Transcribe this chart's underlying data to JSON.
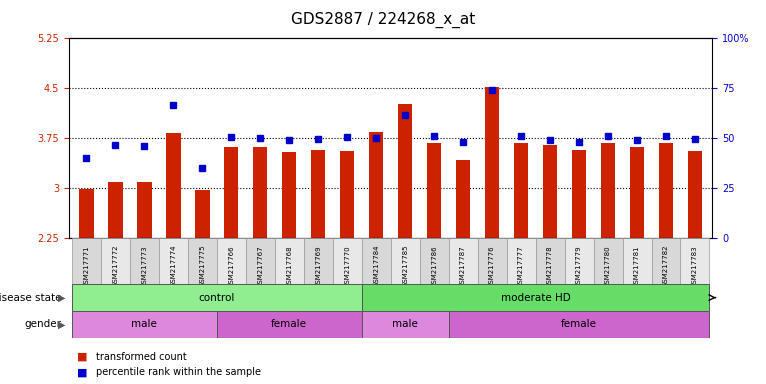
{
  "title": "GDS2887 / 224268_x_at",
  "samples": [
    "GSM217771",
    "GSM217772",
    "GSM217773",
    "GSM217774",
    "GSM217775",
    "GSM217766",
    "GSM217767",
    "GSM217768",
    "GSM217769",
    "GSM217770",
    "GSM217784",
    "GSM217785",
    "GSM217786",
    "GSM217787",
    "GSM217776",
    "GSM217777",
    "GSM217778",
    "GSM217779",
    "GSM217780",
    "GSM217781",
    "GSM217782",
    "GSM217783"
  ],
  "bar_values": [
    2.98,
    3.1,
    3.09,
    3.83,
    2.97,
    3.62,
    3.62,
    3.54,
    3.57,
    3.56,
    3.84,
    4.27,
    3.68,
    3.42,
    4.52,
    3.68,
    3.65,
    3.57,
    3.68,
    3.62,
    3.68,
    3.56
  ],
  "dot_values": [
    3.45,
    3.65,
    3.63,
    4.25,
    3.3,
    3.77,
    3.76,
    3.72,
    3.74,
    3.77,
    3.75,
    4.1,
    3.79,
    3.7,
    4.48,
    3.79,
    3.73,
    3.7,
    3.78,
    3.72,
    3.78,
    3.74
  ],
  "ylim": [
    2.25,
    5.25
  ],
  "yticks": [
    2.25,
    3.0,
    3.75,
    4.5,
    5.25
  ],
  "ytick_labels": [
    "2.25",
    "3",
    "3.75",
    "4.5",
    "5.25"
  ],
  "right_yticks": [
    0,
    25,
    50,
    75,
    100
  ],
  "right_ytick_labels": [
    "0",
    "25",
    "50",
    "75",
    "100%"
  ],
  "bar_color": "#cc2200",
  "dot_color": "#0000cc",
  "bar_width": 0.5,
  "hline_values": [
    3.0,
    3.75,
    4.5
  ],
  "disease_groups": [
    {
      "label": "control",
      "start": 0,
      "end": 10,
      "color": "#90ee90"
    },
    {
      "label": "moderate HD",
      "start": 10,
      "end": 22,
      "color": "#66dd66"
    }
  ],
  "gender_groups": [
    {
      "label": "male",
      "start": 0,
      "end": 5,
      "color": "#dd88dd"
    },
    {
      "label": "female",
      "start": 5,
      "end": 10,
      "color": "#cc66cc"
    },
    {
      "label": "male",
      "start": 10,
      "end": 13,
      "color": "#dd88dd"
    },
    {
      "label": "female",
      "start": 13,
      "end": 22,
      "color": "#cc66cc"
    }
  ],
  "legend_items": [
    {
      "label": "transformed count",
      "color": "#cc2200",
      "marker": "s"
    },
    {
      "label": "percentile rank within the sample",
      "color": "#0000cc",
      "marker": "s"
    }
  ],
  "left_label": "disease state",
  "gender_label": "gender",
  "title_fontsize": 11,
  "tick_fontsize": 7,
  "grid_color": "black",
  "grid_linestyle": "dotted"
}
